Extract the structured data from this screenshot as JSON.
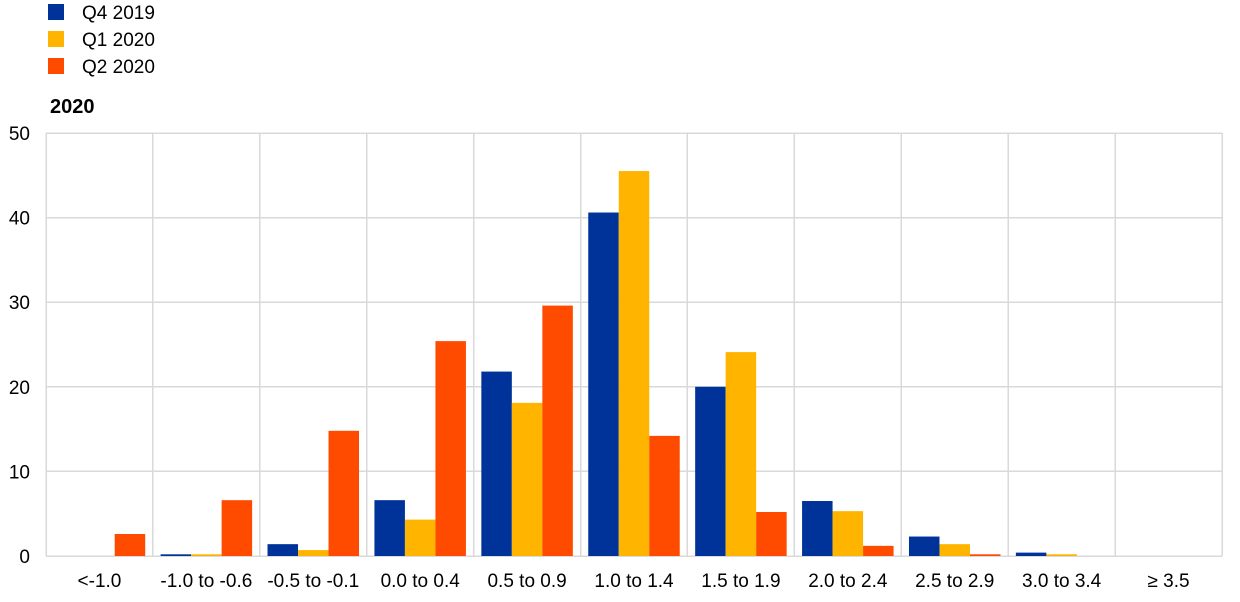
{
  "chart_data": {
    "type": "bar",
    "title": "2020",
    "xlabel": "",
    "ylabel": "",
    "ylim": [
      0,
      50
    ],
    "yticks": [
      0,
      10,
      20,
      30,
      40,
      50
    ],
    "grid": true,
    "legend_position": "top-left",
    "categories": [
      "<-1.0",
      "-1.0 to -0.6",
      "-0.5 to -0.1",
      "0.0 to 0.4",
      "0.5 to 0.9",
      "1.0 to 1.4",
      "1.5 to 1.9",
      "2.0 to 2.4",
      "2.5 to 2.9",
      "3.0 to 3.4",
      "≥ 3.5"
    ],
    "series": [
      {
        "name": "Q4 2019",
        "color": "#003399",
        "values": [
          0.0,
          0.2,
          1.4,
          6.6,
          21.8,
          40.6,
          20.0,
          6.5,
          2.3,
          0.4,
          0.0
        ]
      },
      {
        "name": "Q1 2020",
        "color": "#FFB400",
        "values": [
          0.0,
          0.2,
          0.7,
          4.3,
          18.1,
          45.5,
          24.1,
          5.3,
          1.4,
          0.2,
          0.0
        ]
      },
      {
        "name": "Q2 2020",
        "color": "#FF4B00",
        "values": [
          2.6,
          6.6,
          14.8,
          25.4,
          29.6,
          14.2,
          5.2,
          1.2,
          0.2,
          0.0,
          0.0
        ]
      }
    ]
  }
}
